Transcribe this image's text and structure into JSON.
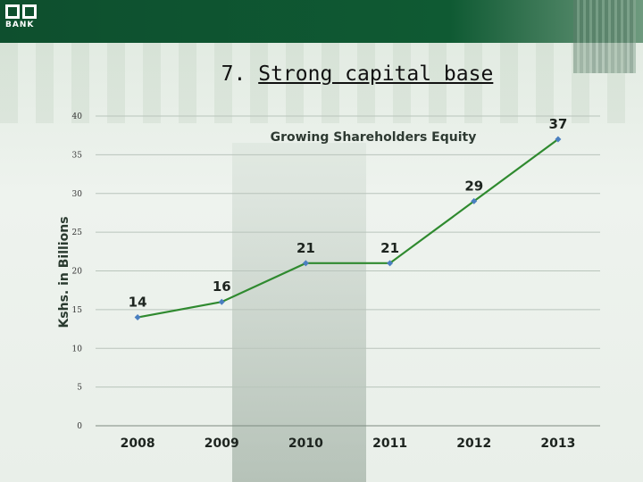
{
  "brand": {
    "logo_text": "BANK"
  },
  "slide": {
    "number": "7.",
    "title": "Strong capital base"
  },
  "chart_data": {
    "type": "line",
    "title": "Growing Shareholders Equity",
    "xlabel": "",
    "ylabel": "Kshs. in Billions",
    "categories": [
      "2008",
      "2009",
      "2010",
      "2011",
      "2012",
      "2013"
    ],
    "series": [
      {
        "values": [
          14,
          16,
          21,
          21,
          29,
          37
        ],
        "color": "#2f8a2f",
        "marker_color": "#4a7fc0"
      }
    ],
    "data_labels": [
      "14",
      "16",
      "21",
      "21",
      "29",
      "37"
    ],
    "ylim": [
      0,
      40
    ],
    "yticks": [
      0,
      5,
      10,
      15,
      20,
      25,
      30,
      35,
      40
    ],
    "grid": true,
    "legend": "none"
  }
}
